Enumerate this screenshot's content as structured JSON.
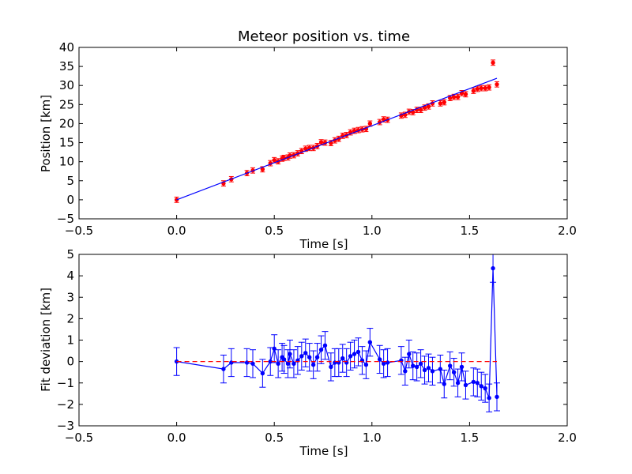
{
  "chart_data": [
    {
      "type": "scatter",
      "title": "Meteor position vs. time",
      "xlabel": "Time [s]",
      "ylabel": "Position [km]",
      "xlim": [
        -0.5,
        2.0
      ],
      "ylim": [
        -5,
        40
      ],
      "x_ticks": [
        "−0.5",
        "0.0",
        "0.5",
        "1.0",
        "1.5",
        "2.0"
      ],
      "y_ticks": [
        "−5",
        "0",
        "5",
        "10",
        "15",
        "20",
        "25",
        "30",
        "35",
        "40"
      ],
      "grid": false,
      "series": [
        {
          "kind": "points-with-errorbars",
          "color": "#ff0000",
          "x": [
            0.0,
            0.24,
            0.28,
            0.36,
            0.39,
            0.44,
            0.48,
            0.5,
            0.52,
            0.54,
            0.55,
            0.57,
            0.58,
            0.6,
            0.62,
            0.64,
            0.66,
            0.68,
            0.7,
            0.72,
            0.74,
            0.76,
            0.79,
            0.81,
            0.83,
            0.85,
            0.87,
            0.89,
            0.91,
            0.93,
            0.95,
            0.97,
            0.99,
            1.04,
            1.06,
            1.08,
            1.15,
            1.17,
            1.19,
            1.21,
            1.23,
            1.25,
            1.27,
            1.29,
            1.31,
            1.35,
            1.37,
            1.4,
            1.42,
            1.44,
            1.46,
            1.48,
            1.52,
            1.54,
            1.56,
            1.58,
            1.6,
            1.62,
            1.64
          ],
          "y": [
            0.0,
            4.3,
            5.4,
            7.0,
            7.7,
            8.0,
            9.6,
            10.4,
            10.1,
            10.8,
            11.0,
            11.1,
            11.6,
            11.7,
            12.2,
            12.8,
            13.4,
            13.6,
            13.6,
            14.1,
            15.1,
            15.0,
            14.9,
            15.6,
            16.0,
            16.8,
            17.0,
            17.7,
            18.1,
            18.3,
            18.5,
            18.6,
            20.0,
            20.4,
            21.1,
            21.0,
            22.1,
            22.3,
            23.1,
            23.0,
            23.6,
            23.6,
            24.2,
            24.5,
            25.3,
            25.3,
            25.6,
            26.7,
            27.0,
            27.0,
            28.0,
            27.7,
            28.6,
            29.1,
            29.3,
            29.3,
            29.5,
            36.0,
            30.3
          ],
          "error": 0.7
        },
        {
          "kind": "fit-line",
          "color": "#0000ff",
          "x": [
            0.0,
            1.64
          ],
          "y": [
            0.0,
            31.9
          ]
        }
      ]
    },
    {
      "type": "line",
      "title": "",
      "xlabel": "Time [s]",
      "ylabel": "Fit deviation [km]",
      "xlim": [
        -0.5,
        2.0
      ],
      "ylim": [
        -3,
        5
      ],
      "x_ticks": [
        "−0.5",
        "0.0",
        "0.5",
        "1.0",
        "1.5",
        "2.0"
      ],
      "y_ticks": [
        "−3",
        "−2",
        "−1",
        "0",
        "1",
        "2",
        "3",
        "4",
        "5"
      ],
      "grid": false,
      "series": [
        {
          "kind": "line-with-errorbars",
          "color": "#0000ff",
          "x": [
            0.0,
            0.24,
            0.28,
            0.36,
            0.39,
            0.44,
            0.48,
            0.5,
            0.52,
            0.54,
            0.55,
            0.57,
            0.58,
            0.6,
            0.62,
            0.64,
            0.66,
            0.68,
            0.7,
            0.72,
            0.74,
            0.76,
            0.79,
            0.81,
            0.83,
            0.85,
            0.87,
            0.89,
            0.91,
            0.93,
            0.95,
            0.97,
            0.99,
            1.04,
            1.06,
            1.08,
            1.15,
            1.17,
            1.19,
            1.21,
            1.23,
            1.25,
            1.27,
            1.29,
            1.31,
            1.35,
            1.37,
            1.4,
            1.42,
            1.44,
            1.46,
            1.48,
            1.52,
            1.54,
            1.56,
            1.58,
            1.6,
            1.62,
            1.64
          ],
          "y": [
            0.0,
            -0.35,
            -0.05,
            -0.05,
            -0.1,
            -0.55,
            0.0,
            0.6,
            -0.1,
            0.2,
            0.1,
            -0.1,
            0.35,
            -0.1,
            0.05,
            0.25,
            0.4,
            0.2,
            -0.15,
            0.2,
            0.55,
            0.75,
            -0.25,
            -0.05,
            -0.05,
            0.15,
            -0.05,
            0.25,
            0.35,
            0.45,
            0.05,
            -0.15,
            0.9,
            0.1,
            -0.1,
            -0.05,
            0.05,
            -0.45,
            0.35,
            -0.2,
            -0.25,
            -0.1,
            -0.4,
            -0.3,
            -0.45,
            -0.35,
            -1.05,
            -0.2,
            -0.5,
            -1.0,
            -0.25,
            -1.1,
            -0.95,
            -1.0,
            -1.15,
            -1.25,
            -1.7,
            4.35,
            -1.65
          ],
          "error": 0.65
        },
        {
          "kind": "reference-line",
          "color": "#ff0000",
          "dashed": true,
          "x": [
            0.0,
            1.64
          ],
          "y": [
            0.0,
            0.0
          ]
        }
      ]
    }
  ]
}
